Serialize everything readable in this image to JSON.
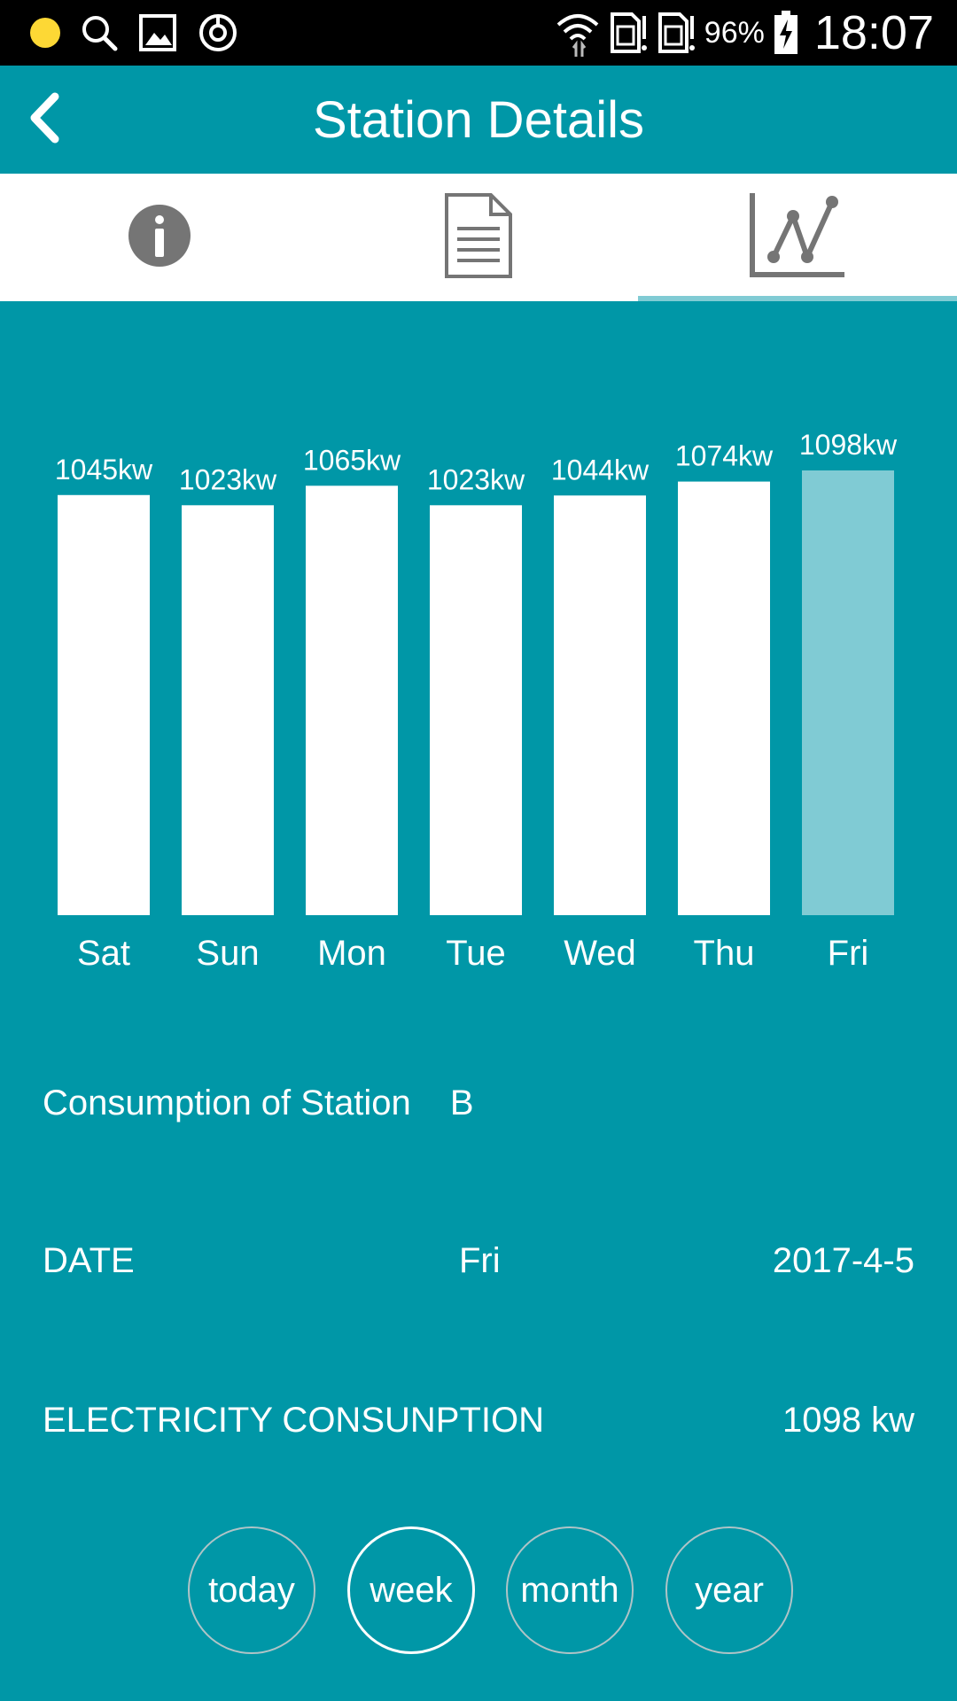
{
  "status_bar": {
    "battery": "96%",
    "time": "18:07"
  },
  "header": {
    "title": "Station Details"
  },
  "tabs": [
    {
      "icon": "info-icon",
      "active": false
    },
    {
      "icon": "document-icon",
      "active": false
    },
    {
      "icon": "line-chart-icon",
      "active": true
    }
  ],
  "chart_data": {
    "type": "bar",
    "categories": [
      "Sat",
      "Sun",
      "Mon",
      "Tue",
      "Wed",
      "Thu",
      "Fri"
    ],
    "values": [
      1045,
      1023,
      1065,
      1023,
      1044,
      1074,
      1098
    ],
    "value_labels": [
      "1045kw",
      "1023kw",
      "1065kw",
      "1023kw",
      "1044kw",
      "1074kw",
      "1098kw"
    ],
    "unit": "kw",
    "selected_index": 6,
    "colors": {
      "bar": "#ffffff",
      "selected_bar": "#80cbd4",
      "background": "#0097a7"
    }
  },
  "details": {
    "station_label": "Consumption of Station",
    "station_value": "B",
    "date_label": "DATE",
    "date_day": "Fri",
    "date_value": "2017-4-5",
    "electricity_label": "ELECTRICITY CONSUNPTION",
    "electricity_value": "1098 kw"
  },
  "periods": [
    {
      "label": "today",
      "active": false
    },
    {
      "label": "week",
      "active": true
    },
    {
      "label": "month",
      "active": false
    },
    {
      "label": "year",
      "active": false
    }
  ],
  "colors": {
    "accent": "#0097a7",
    "tab_indicator": "#80cbd4",
    "icon_gray": "#757575"
  }
}
